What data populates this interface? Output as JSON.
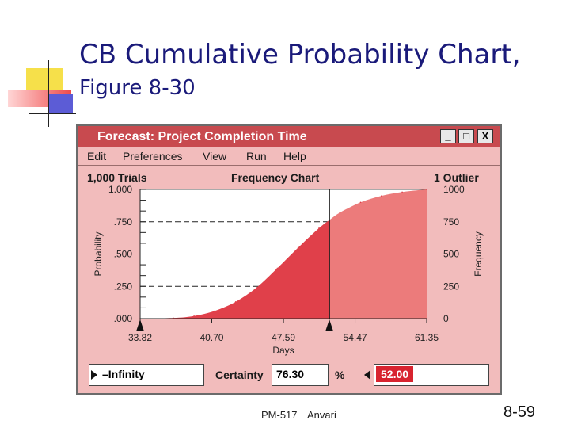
{
  "slide": {
    "title_line1": "CB Cumulative Probability Chart,",
    "title_line2": "Figure 8-30",
    "footer_course": "PM-517",
    "footer_author": "Anvari",
    "page_number": "8-59"
  },
  "window": {
    "title": "Forecast: Project Completion Time",
    "buttons": [
      "_",
      "□",
      "X"
    ],
    "menu": [
      "Edit",
      "Preferences",
      "View",
      "Run",
      "Help"
    ],
    "trials": "1,000 Trials",
    "chart_label": "Frequency Chart",
    "outliers": "1 Outlier"
  },
  "controls": {
    "left_value": "–Infinity",
    "certainty_label": "Certainty",
    "certainty_value": "76.30",
    "percent": "%",
    "right_value": "52.00"
  },
  "colors": {
    "window_bg": "#f2bcbc",
    "titlebar": "#c84a4f",
    "area_dark": "#e0404a",
    "area_light": "#ec7b7b",
    "certainty_field": "#d8232f"
  },
  "chart_data": {
    "type": "area",
    "xlabel": "Days",
    "ylabel_left": "Probability",
    "ylabel_right": "Frequency",
    "x_ticks": [
      "33.82",
      "40.70",
      "47.59",
      "54.47",
      "61.35"
    ],
    "x_tick_values": [
      33.82,
      40.7,
      47.59,
      54.47,
      61.35
    ],
    "y_left_ticks": [
      "1.000",
      ".750",
      ".500",
      ".250",
      ".000"
    ],
    "y_left_tick_values": [
      1.0,
      0.75,
      0.5,
      0.25,
      0.0
    ],
    "y_right_ticks": [
      "1000",
      "750",
      "500",
      "250",
      "0"
    ],
    "y_right_tick_values": [
      1000,
      750,
      500,
      250,
      0
    ],
    "xlim": [
      33.82,
      61.35
    ],
    "ylim": [
      0,
      1
    ],
    "grid": "dashed horizontal",
    "certainty_cutoff_x": 52.0,
    "cutoff_probability": 0.763,
    "points": [
      {
        "x": 33.82,
        "y": 0.0
      },
      {
        "x": 37.0,
        "y": 0.005
      },
      {
        "x": 39.0,
        "y": 0.02
      },
      {
        "x": 41.0,
        "y": 0.06
      },
      {
        "x": 43.0,
        "y": 0.13
      },
      {
        "x": 45.0,
        "y": 0.24
      },
      {
        "x": 47.0,
        "y": 0.39
      },
      {
        "x": 49.0,
        "y": 0.55
      },
      {
        "x": 51.0,
        "y": 0.7
      },
      {
        "x": 52.0,
        "y": 0.763
      },
      {
        "x": 53.0,
        "y": 0.82
      },
      {
        "x": 55.0,
        "y": 0.9
      },
      {
        "x": 57.0,
        "y": 0.95
      },
      {
        "x": 59.0,
        "y": 0.98
      },
      {
        "x": 61.35,
        "y": 1.0
      }
    ]
  }
}
